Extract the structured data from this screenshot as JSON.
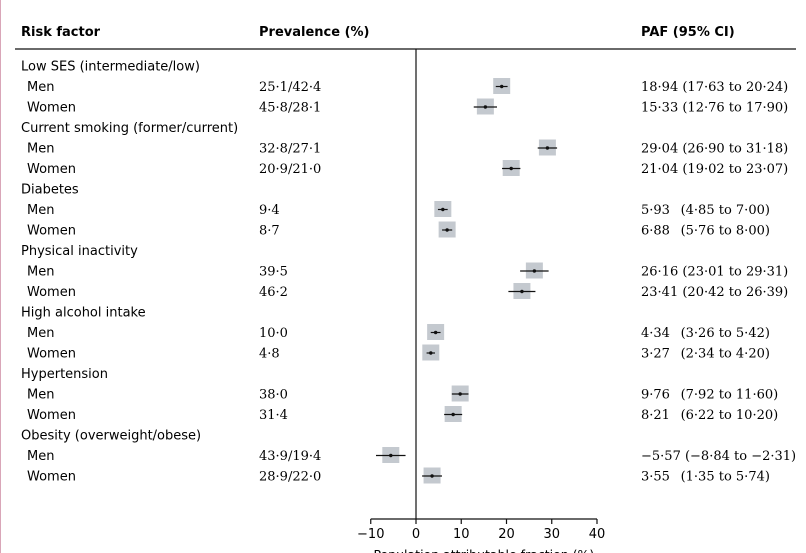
{
  "headers": {
    "risk_factor": "Risk factor",
    "prevalence": "Prevalence (%)",
    "paf": "PAF (95% CI)"
  },
  "chart_data": {
    "type": "forest",
    "xlabel": "Population attributable fraction (%)",
    "xlim": [
      -10,
      40
    ],
    "xticks": [
      "−10",
      "0",
      "10",
      "20",
      "30",
      "40"
    ],
    "xtick_values": [
      -10,
      0,
      10,
      20,
      30,
      40
    ],
    "reference_line": 0,
    "marker_color": "#c4c9cf",
    "groups": [
      {
        "name": "Low SES (intermediate/low)",
        "rows": [
          {
            "label": "Men",
            "prevalence": "25·1/42·4",
            "paf_text": "18·94 (17·63 to 20·24)",
            "est": 18.94,
            "lo": 17.63,
            "hi": 20.24
          },
          {
            "label": "Women",
            "prevalence": "45·8/28·1",
            "paf_text": "15·33 (12·76 to 17·90)",
            "est": 15.33,
            "lo": 12.76,
            "hi": 17.9
          }
        ]
      },
      {
        "name": "Current smoking (former/current)",
        "rows": [
          {
            "label": "Men",
            "prevalence": "32·8/27·1",
            "paf_text": "29·04 (26·90 to 31·18)",
            "est": 29.04,
            "lo": 26.9,
            "hi": 31.18
          },
          {
            "label": "Women",
            "prevalence": "20·9/21·0",
            "paf_text": "21·04 (19·02 to 23·07)",
            "est": 21.04,
            "lo": 19.02,
            "hi": 23.07
          }
        ]
      },
      {
        "name": "Diabetes",
        "rows": [
          {
            "label": "Men",
            "prevalence": "9·4",
            "paf_text": "5·93  (4·85 to 7·00)",
            "est": 5.93,
            "lo": 4.85,
            "hi": 7.0
          },
          {
            "label": "Women",
            "prevalence": "8·7",
            "paf_text": "6·88  (5·76 to 8·00)",
            "est": 6.88,
            "lo": 5.76,
            "hi": 8.0
          }
        ]
      },
      {
        "name": "Physical inactivity",
        "rows": [
          {
            "label": "Men",
            "prevalence": "39·5",
            "paf_text": "26·16 (23·01 to 29·31)",
            "est": 26.16,
            "lo": 23.01,
            "hi": 29.31
          },
          {
            "label": "Women",
            "prevalence": "46·2",
            "paf_text": "23·41 (20·42 to 26·39)",
            "est": 23.41,
            "lo": 20.42,
            "hi": 26.39
          }
        ]
      },
      {
        "name": "High alcohol intake",
        "rows": [
          {
            "label": "Men",
            "prevalence": "10·0",
            "paf_text": "4·34  (3·26 to 5·42)",
            "est": 4.34,
            "lo": 3.26,
            "hi": 5.42
          },
          {
            "label": "Women",
            "prevalence": "4·8",
            "paf_text": "3·27  (2·34 to 4·20)",
            "est": 3.27,
            "lo": 2.34,
            "hi": 4.2
          }
        ]
      },
      {
        "name": "Hypertension",
        "rows": [
          {
            "label": "Men",
            "prevalence": "38·0",
            "paf_text": "9·76  (7·92 to 11·60)",
            "est": 9.76,
            "lo": 7.92,
            "hi": 11.6
          },
          {
            "label": "Women",
            "prevalence": "31·4",
            "paf_text": "8·21  (6·22 to 10·20)",
            "est": 8.21,
            "lo": 6.22,
            "hi": 10.2
          }
        ]
      },
      {
        "name": "Obesity (overweight/obese)",
        "rows": [
          {
            "label": "Men",
            "prevalence": "43·9/19·4",
            "paf_text": "−5·57 (−8·84 to −2·31)",
            "est": -5.57,
            "lo": -8.84,
            "hi": -2.31
          },
          {
            "label": "Women",
            "prevalence": "28·9/22·0",
            "paf_text": "3·55  (1·35 to 5·74)",
            "est": 3.55,
            "lo": 1.35,
            "hi": 5.74
          }
        ]
      }
    ]
  }
}
